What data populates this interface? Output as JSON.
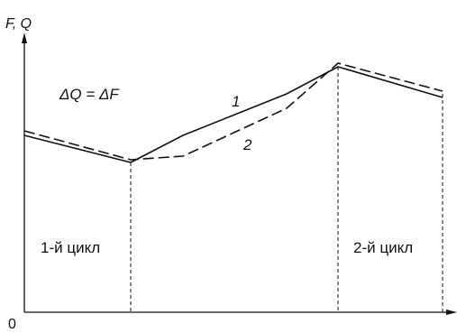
{
  "labels": {
    "y_axis": "F, Q",
    "origin": "0",
    "formula": "ΔQ = ΔF",
    "curve1": "1",
    "curve2": "2",
    "cycle1": "1-й цикл",
    "cycle2": "2-й цикл"
  },
  "colors": {
    "ink": "#111111",
    "background": "#ffffff"
  }
}
